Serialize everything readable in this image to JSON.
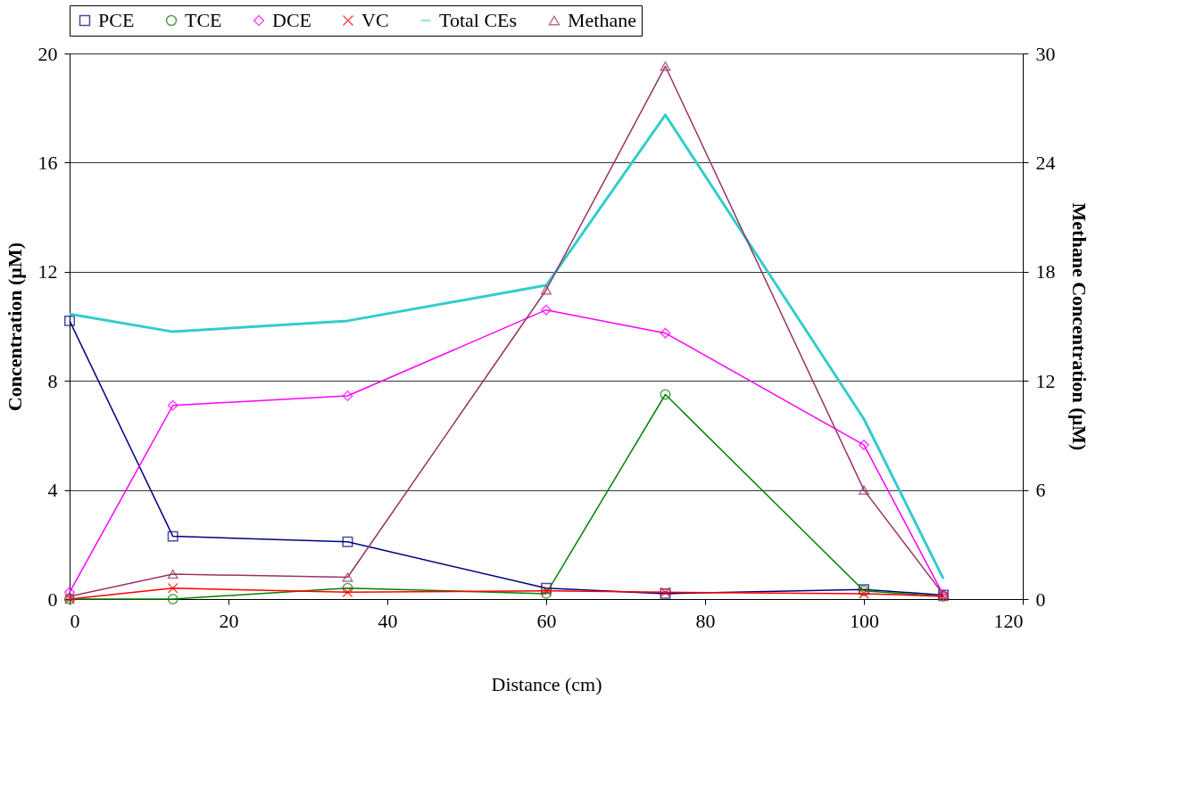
{
  "chart_data": {
    "type": "line",
    "xlabel": "Distance (cm)",
    "ylabel": "Concentration (µM)",
    "y2label": "Methane Concentration (µM)",
    "x": [
      0,
      13,
      35,
      60,
      75,
      100,
      110
    ],
    "xlim": [
      0,
      120
    ],
    "xticks": [
      0,
      20,
      40,
      60,
      80,
      100,
      120
    ],
    "ylim": [
      0,
      20
    ],
    "yticks": [
      0,
      4,
      8,
      12,
      16,
      20
    ],
    "y2lim": [
      0,
      30
    ],
    "y2ticks": [
      0,
      6,
      12,
      18,
      24,
      30
    ],
    "grid": "y",
    "legend": "top",
    "series": [
      {
        "name": "PCE",
        "color": "#000080",
        "marker": "square",
        "values": [
          10.2,
          2.3,
          2.1,
          0.4,
          0.2,
          0.35,
          0.15
        ]
      },
      {
        "name": "TCE",
        "color": "#008000",
        "marker": "circle",
        "values": [
          0,
          0,
          0.4,
          0.2,
          7.5,
          0.3,
          0.1
        ]
      },
      {
        "name": "DCE",
        "color": "#ff00ff",
        "marker": "diamond",
        "values": [
          0.25,
          7.1,
          7.45,
          10.6,
          9.75,
          5.65,
          0.15
        ]
      },
      {
        "name": "VC",
        "color": "#ff0000",
        "marker": "cross",
        "values": [
          0,
          0.4,
          0.25,
          0.3,
          0.25,
          0.2,
          0.1
        ]
      },
      {
        "name": "Total CEs",
        "color": "#33cccc",
        "marker": "none",
        "values": [
          10.45,
          9.8,
          10.2,
          11.5,
          17.75,
          6.6,
          0.75
        ]
      },
      {
        "name": "Methane",
        "color": "#993366",
        "marker": "triangle",
        "axis": "y2",
        "values": [
          0.15,
          1.37,
          1.2,
          17,
          29.3,
          6.0,
          0.25
        ]
      }
    ]
  }
}
